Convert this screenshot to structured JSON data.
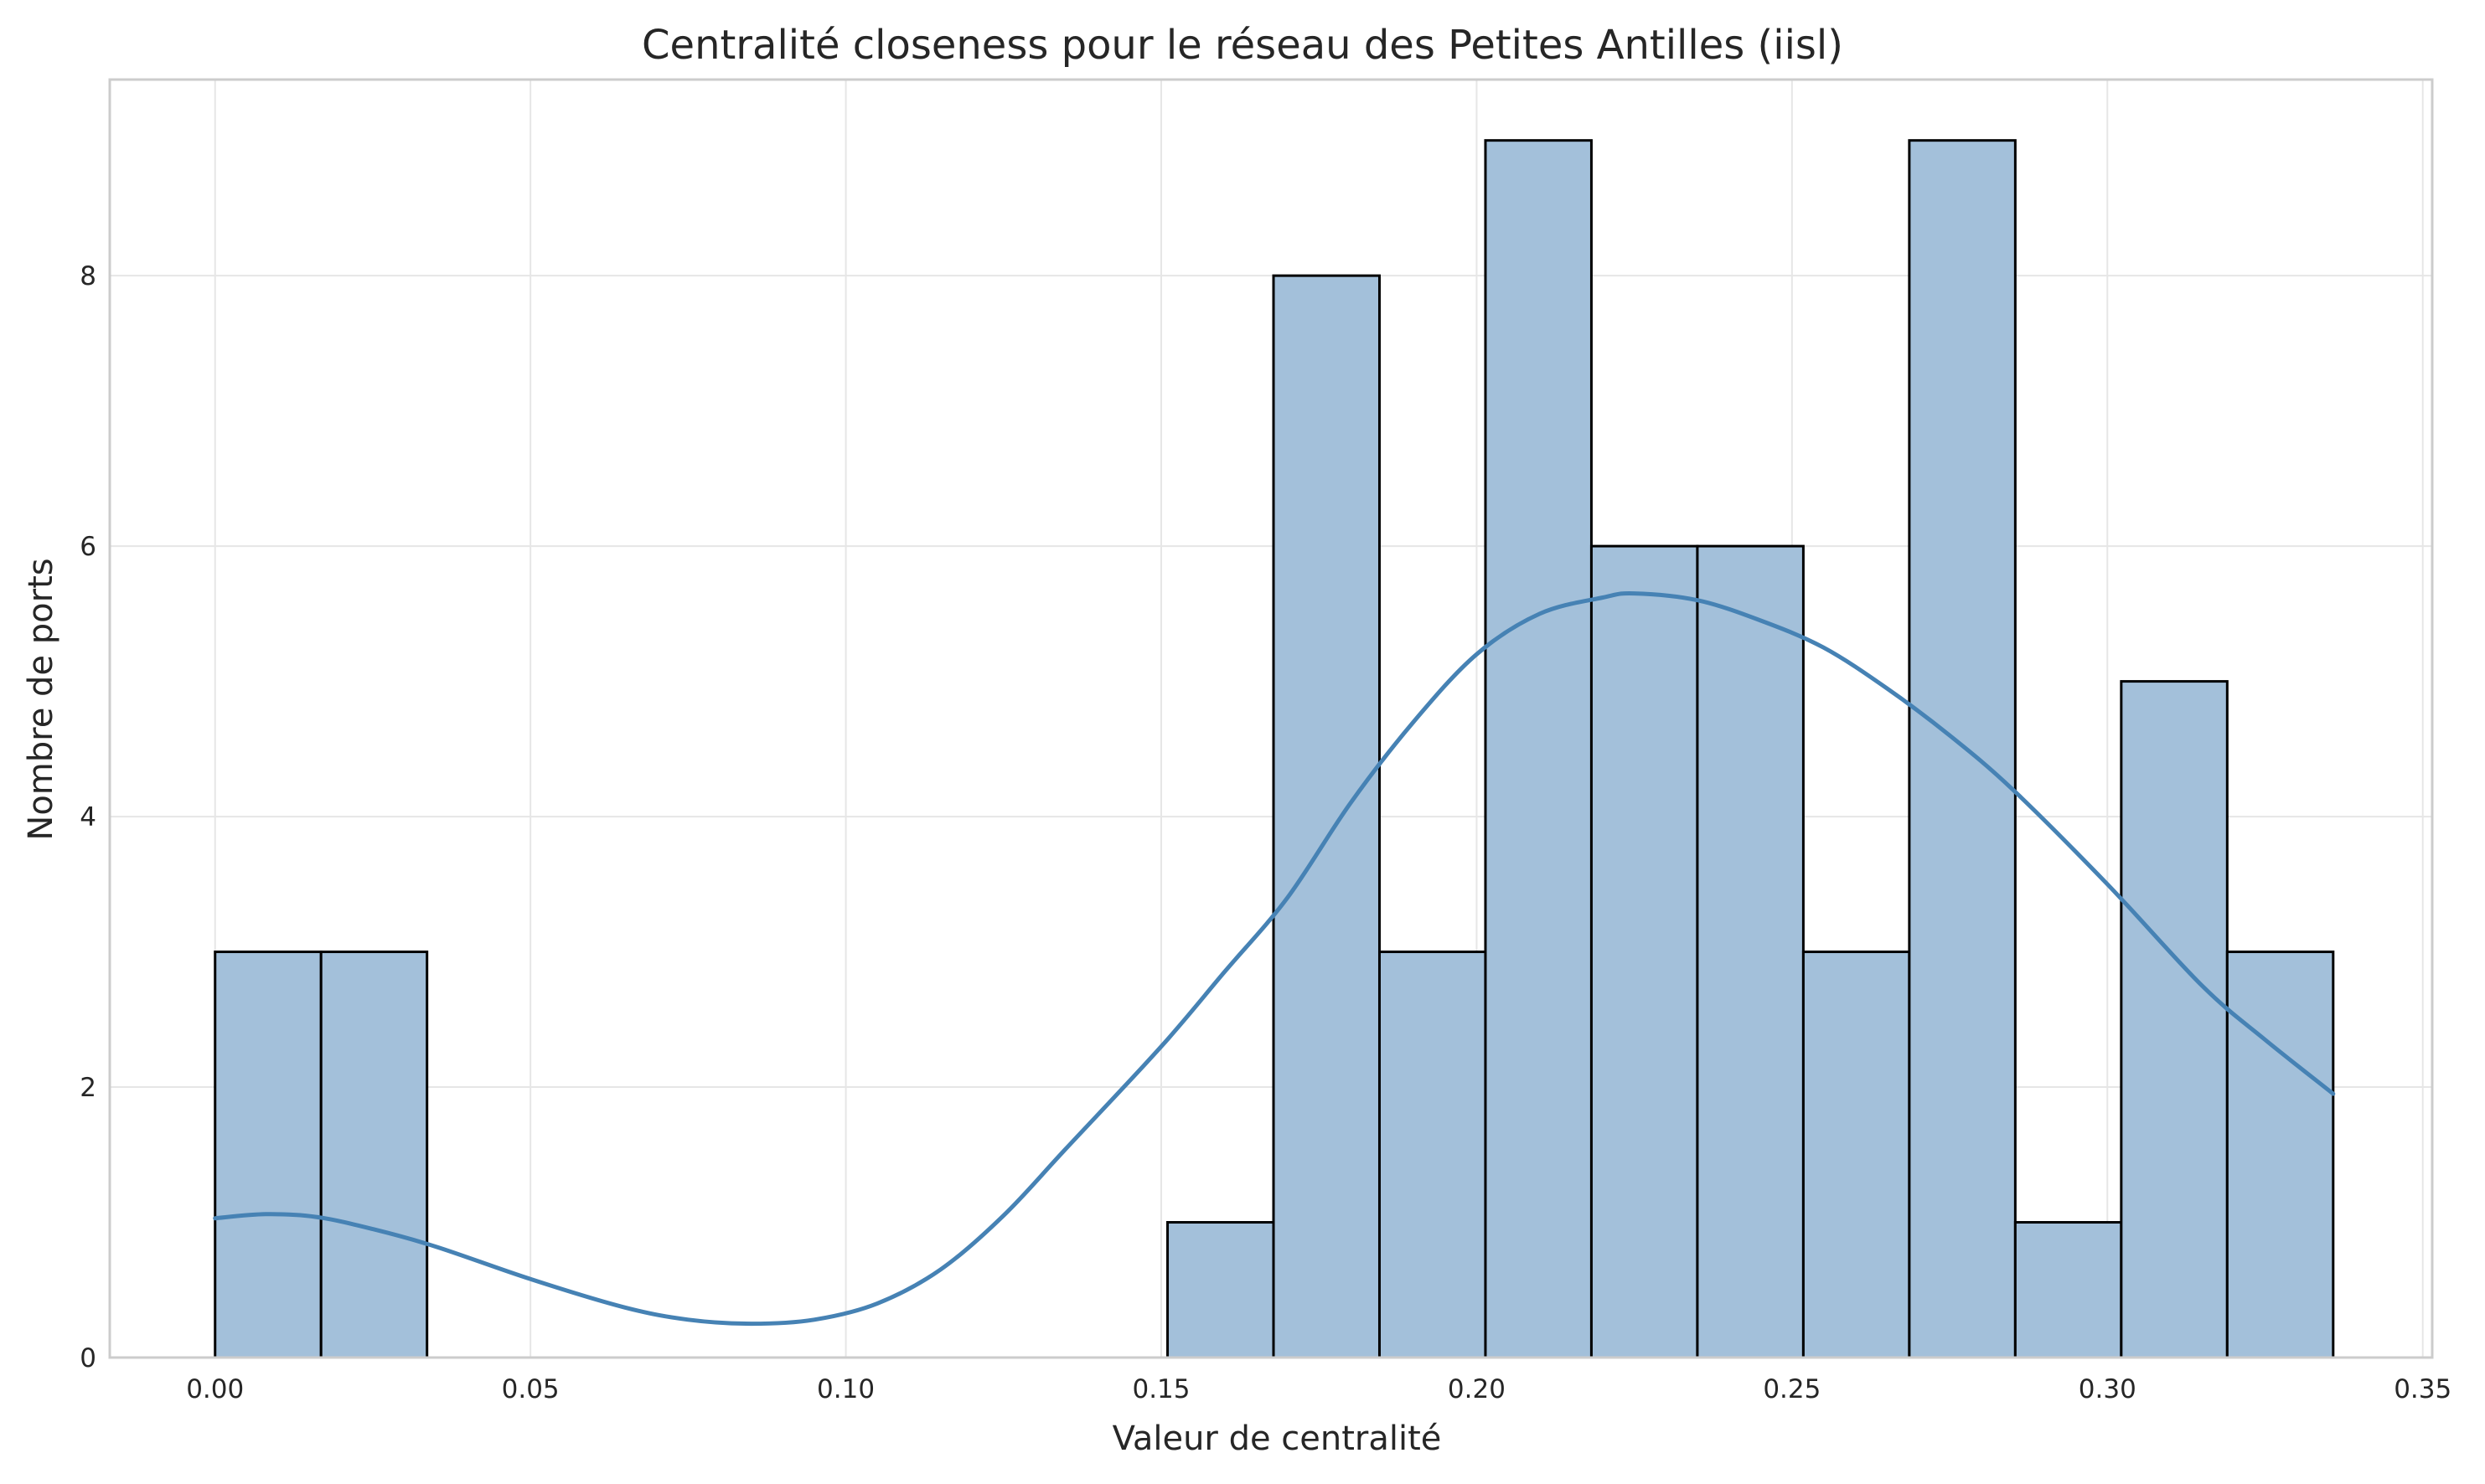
{
  "chart_data": {
    "type": "bar",
    "title": "Centralité closeness pour le réseau des Petites Antilles (iisl)",
    "xlabel": "Valeur de centralité",
    "ylabel": "Nombre de ports",
    "xlim": [
      -0.0167,
      0.3515
    ],
    "ylim": [
      0,
      9.45
    ],
    "xticks": [
      0.0,
      0.05,
      0.1,
      0.15,
      0.2,
      0.25,
      0.3,
      0.35
    ],
    "xtick_labels": [
      "0.00",
      "0.05",
      "0.10",
      "0.15",
      "0.20",
      "0.25",
      "0.30",
      "0.35"
    ],
    "yticks": [
      0,
      2,
      4,
      6,
      8
    ],
    "ytick_labels": [
      "0",
      "2",
      "4",
      "6",
      "8"
    ],
    "grid": true,
    "bins": [
      {
        "x0": 0.0,
        "x1": 0.0168,
        "count": 3
      },
      {
        "x0": 0.0168,
        "x1": 0.0336,
        "count": 3
      },
      {
        "x0": 0.151,
        "x1": 0.1678,
        "count": 1
      },
      {
        "x0": 0.1678,
        "x1": 0.1846,
        "count": 8
      },
      {
        "x0": 0.1846,
        "x1": 0.2014,
        "count": 3
      },
      {
        "x0": 0.2014,
        "x1": 0.2182,
        "count": 9
      },
      {
        "x0": 0.2182,
        "x1": 0.235,
        "count": 6
      },
      {
        "x0": 0.235,
        "x1": 0.2518,
        "count": 6
      },
      {
        "x0": 0.2518,
        "x1": 0.2686,
        "count": 3
      },
      {
        "x0": 0.2686,
        "x1": 0.2854,
        "count": 9
      },
      {
        "x0": 0.2854,
        "x1": 0.3022,
        "count": 1
      },
      {
        "x0": 0.3022,
        "x1": 0.319,
        "count": 5
      },
      {
        "x0": 0.319,
        "x1": 0.3358,
        "count": 3
      }
    ],
    "kde": {
      "x": [
        0.0,
        0.008,
        0.016,
        0.025,
        0.035,
        0.05,
        0.065,
        0.075,
        0.085,
        0.095,
        0.105,
        0.115,
        0.125,
        0.135,
        0.15,
        0.16,
        0.17,
        0.18,
        0.19,
        0.2,
        0.21,
        0.22,
        0.225,
        0.235,
        0.245,
        0.255,
        0.265,
        0.275,
        0.285,
        0.3,
        0.315,
        0.325,
        0.3358
      ],
      "y": [
        1.03,
        1.06,
        1.04,
        0.95,
        0.82,
        0.58,
        0.37,
        0.28,
        0.25,
        0.28,
        0.4,
        0.65,
        1.05,
        1.55,
        2.3,
        2.85,
        3.4,
        4.1,
        4.7,
        5.2,
        5.5,
        5.62,
        5.65,
        5.6,
        5.45,
        5.25,
        4.95,
        4.6,
        4.2,
        3.5,
        2.75,
        2.35,
        1.95
      ]
    },
    "colors": {
      "bar_fill": "#a3c0da",
      "bar_edge": "#000000",
      "kde_line": "#4682b4",
      "grid": "#e6e6e6",
      "spine": "#cccccc"
    }
  }
}
